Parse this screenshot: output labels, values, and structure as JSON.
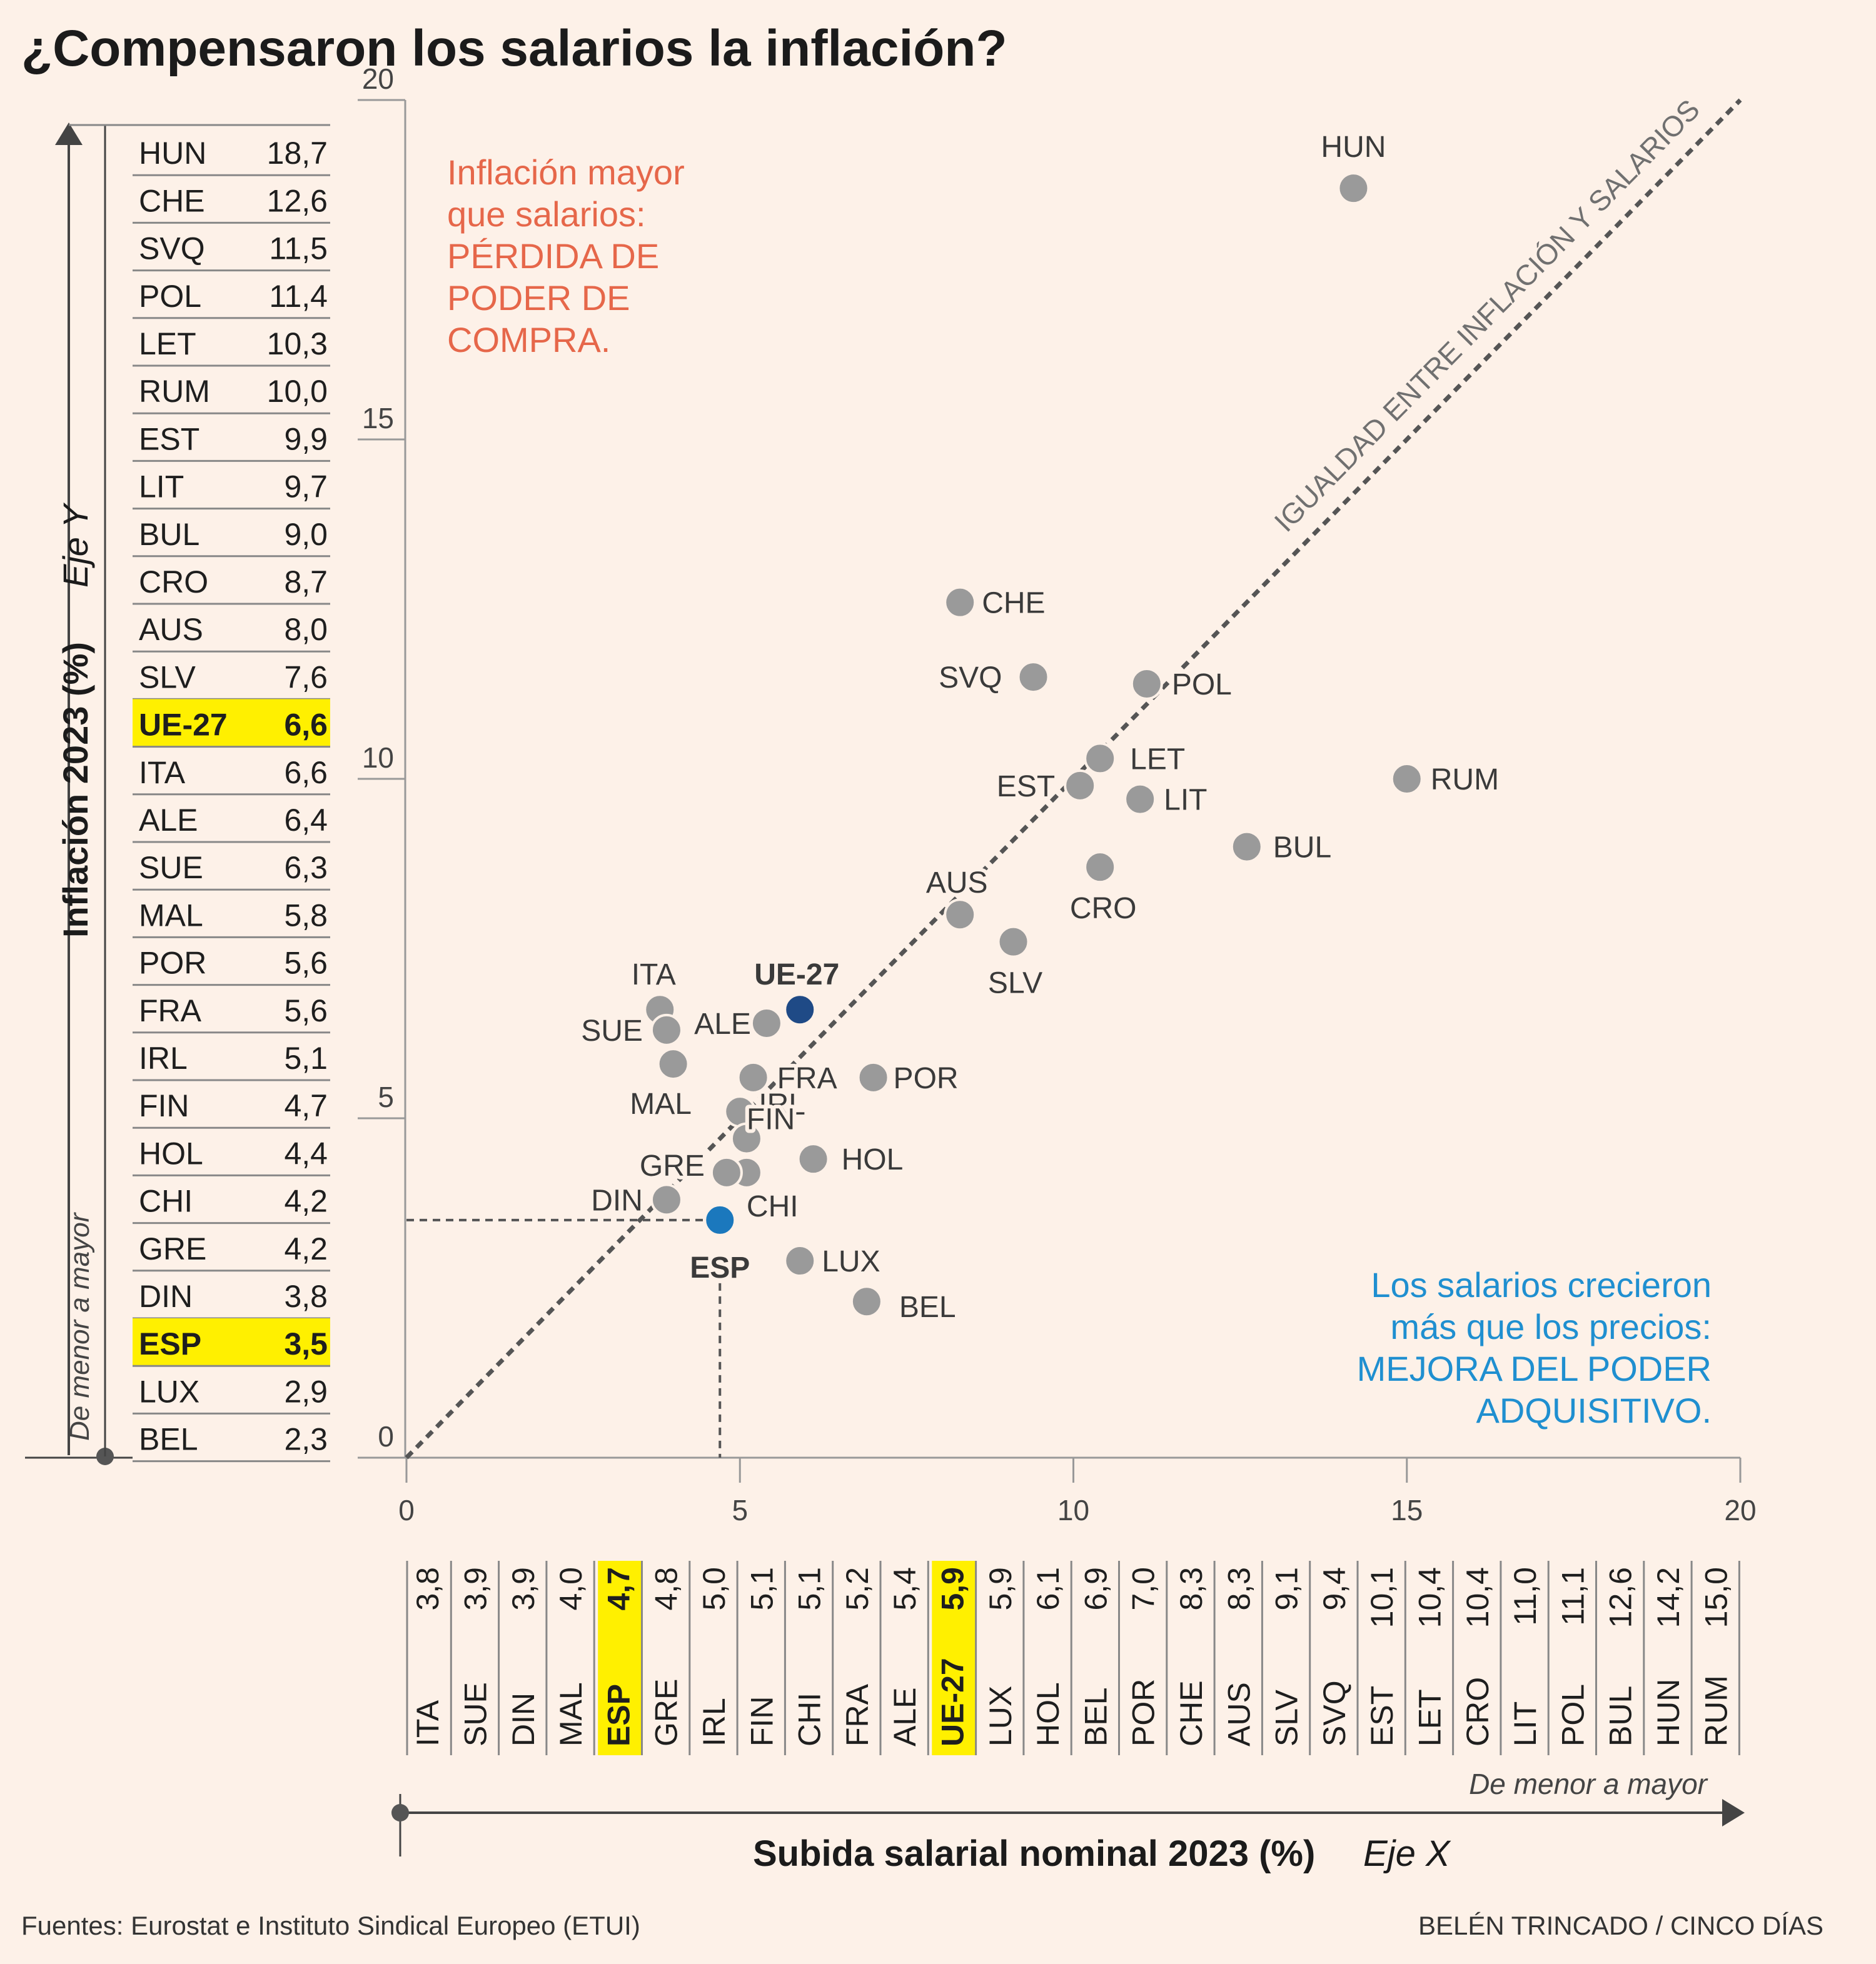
{
  "title": "¿Compensaron los salarios la inflación?",
  "y_axis": {
    "title": "Inflación 2023 (%)",
    "subtitle": "Eje Y",
    "order_note": "De menor a mayor"
  },
  "x_axis": {
    "title": "Subida salarial nominal 2023 (%)",
    "subtitle": "Eje X",
    "order_note": "De menor a mayor"
  },
  "diagonal_label": "IGUALDAD ENTRE INFLACIÓN Y SALARIOS",
  "annotation_loss": [
    "Inflación mayor",
    "que salarios:",
    "PÉRDIDA DE",
    "PODER DE",
    "COMPRA."
  ],
  "annotation_gain": [
    "Los salarios crecieron",
    "más que los precios:",
    "MEJORA DEL PODER",
    "ADQUISITIVO."
  ],
  "source": "Fuentes: Eurostat e Instituto Sindical Europeo (ETUI)",
  "credit": "BELÉN TRINCADO / CINCO DÍAS",
  "colors": {
    "background": "#fdf1e8",
    "point": "#9a9a9a",
    "eu": "#1f4a86",
    "spain": "#1b78bd",
    "highlight": "#fff000",
    "loss": "#e6674a",
    "gain": "#1f8fd0"
  },
  "chart_data": {
    "type": "scatter",
    "title": "¿Compensaron los salarios la inflación?",
    "xlabel": "Subida salarial nominal 2023 (%)",
    "ylabel": "Inflación 2023 (%)",
    "xlim": [
      0,
      20
    ],
    "ylim": [
      0,
      20
    ],
    "x_ticks": [
      0,
      5,
      10,
      15,
      20
    ],
    "y_ticks": [
      0,
      5,
      10,
      15,
      20
    ],
    "reference_line": "y = x",
    "points": [
      {
        "code": "HUN",
        "x": 14.2,
        "y": 18.7
      },
      {
        "code": "CHE",
        "x": 8.3,
        "y": 12.6
      },
      {
        "code": "SVQ",
        "x": 9.4,
        "y": 11.5
      },
      {
        "code": "POL",
        "x": 11.1,
        "y": 11.4
      },
      {
        "code": "LET",
        "x": 10.4,
        "y": 10.3
      },
      {
        "code": "RUM",
        "x": 15.0,
        "y": 10.0
      },
      {
        "code": "EST",
        "x": 10.1,
        "y": 9.9
      },
      {
        "code": "LIT",
        "x": 11.0,
        "y": 9.7
      },
      {
        "code": "BUL",
        "x": 12.6,
        "y": 9.0
      },
      {
        "code": "CRO",
        "x": 10.4,
        "y": 8.7
      },
      {
        "code": "AUS",
        "x": 8.3,
        "y": 8.0
      },
      {
        "code": "SLV",
        "x": 9.1,
        "y": 7.6
      },
      {
        "code": "UE-27",
        "x": 5.9,
        "y": 6.6
      },
      {
        "code": "ITA",
        "x": 3.8,
        "y": 6.6
      },
      {
        "code": "ALE",
        "x": 5.4,
        "y": 6.4
      },
      {
        "code": "SUE",
        "x": 3.9,
        "y": 6.3
      },
      {
        "code": "MAL",
        "x": 4.0,
        "y": 5.8
      },
      {
        "code": "POR",
        "x": 7.0,
        "y": 5.6
      },
      {
        "code": "FRA",
        "x": 5.2,
        "y": 5.6
      },
      {
        "code": "IRL",
        "x": 5.0,
        "y": 5.1
      },
      {
        "code": "FIN",
        "x": 5.1,
        "y": 4.7
      },
      {
        "code": "HOL",
        "x": 6.1,
        "y": 4.4
      },
      {
        "code": "CHI",
        "x": 5.1,
        "y": 4.2
      },
      {
        "code": "GRE",
        "x": 4.8,
        "y": 4.2
      },
      {
        "code": "DIN",
        "x": 3.9,
        "y": 3.8
      },
      {
        "code": "ESP",
        "x": 4.7,
        "y": 3.5
      },
      {
        "code": "LUX",
        "x": 5.9,
        "y": 2.9
      },
      {
        "code": "BEL",
        "x": 6.9,
        "y": 2.3
      }
    ],
    "y_table": [
      {
        "code": "HUN",
        "value": "18,7"
      },
      {
        "code": "CHE",
        "value": "12,6"
      },
      {
        "code": "SVQ",
        "value": "11,5"
      },
      {
        "code": "POL",
        "value": "11,4"
      },
      {
        "code": "LET",
        "value": "10,3"
      },
      {
        "code": "RUM",
        "value": "10,0"
      },
      {
        "code": "EST",
        "value": "9,9"
      },
      {
        "code": "LIT",
        "value": "9,7"
      },
      {
        "code": "BUL",
        "value": "9,0"
      },
      {
        "code": "CRO",
        "value": "8,7"
      },
      {
        "code": "AUS",
        "value": "8,0"
      },
      {
        "code": "SLV",
        "value": "7,6"
      },
      {
        "code": "UE-27",
        "value": "6,6",
        "highlight": true
      },
      {
        "code": "ITA",
        "value": "6,6"
      },
      {
        "code": "ALE",
        "value": "6,4"
      },
      {
        "code": "SUE",
        "value": "6,3"
      },
      {
        "code": "MAL",
        "value": "5,8"
      },
      {
        "code": "POR",
        "value": "5,6"
      },
      {
        "code": "FRA",
        "value": "5,6"
      },
      {
        "code": "IRL",
        "value": "5,1"
      },
      {
        "code": "FIN",
        "value": "4,7"
      },
      {
        "code": "HOL",
        "value": "4,4"
      },
      {
        "code": "CHI",
        "value": "4,2"
      },
      {
        "code": "GRE",
        "value": "4,2"
      },
      {
        "code": "DIN",
        "value": "3,8"
      },
      {
        "code": "ESP",
        "value": "3,5",
        "highlight": true
      },
      {
        "code": "LUX",
        "value": "2,9"
      },
      {
        "code": "BEL",
        "value": "2,3"
      }
    ],
    "x_table": [
      {
        "code": "ITA",
        "value": "3,8"
      },
      {
        "code": "SUE",
        "value": "3,9"
      },
      {
        "code": "DIN",
        "value": "3,9"
      },
      {
        "code": "MAL",
        "value": "4,0"
      },
      {
        "code": "ESP",
        "value": "4,7",
        "highlight": true
      },
      {
        "code": "GRE",
        "value": "4,8"
      },
      {
        "code": "IRL",
        "value": "5,0"
      },
      {
        "code": "FIN",
        "value": "5,1"
      },
      {
        "code": "CHI",
        "value": "5,1"
      },
      {
        "code": "FRA",
        "value": "5,2"
      },
      {
        "code": "ALE",
        "value": "5,4"
      },
      {
        "code": "UE-27",
        "value": "5,9",
        "highlight": true
      },
      {
        "code": "LUX",
        "value": "5,9"
      },
      {
        "code": "HOL",
        "value": "6,1"
      },
      {
        "code": "BEL",
        "value": "6,9"
      },
      {
        "code": "POR",
        "value": "7,0"
      },
      {
        "code": "CHE",
        "value": "8,3"
      },
      {
        "code": "AUS",
        "value": "8,3"
      },
      {
        "code": "SLV",
        "value": "9,1"
      },
      {
        "code": "SVQ",
        "value": "9,4"
      },
      {
        "code": "EST",
        "value": "10,1"
      },
      {
        "code": "LET",
        "value": "10,4"
      },
      {
        "code": "CRO",
        "value": "10,4"
      },
      {
        "code": "LIT",
        "value": "11,0"
      },
      {
        "code": "POL",
        "value": "11,1"
      },
      {
        "code": "BUL",
        "value": "12,6"
      },
      {
        "code": "HUN",
        "value": "14,2"
      },
      {
        "code": "RUM",
        "value": "15,0"
      }
    ]
  }
}
